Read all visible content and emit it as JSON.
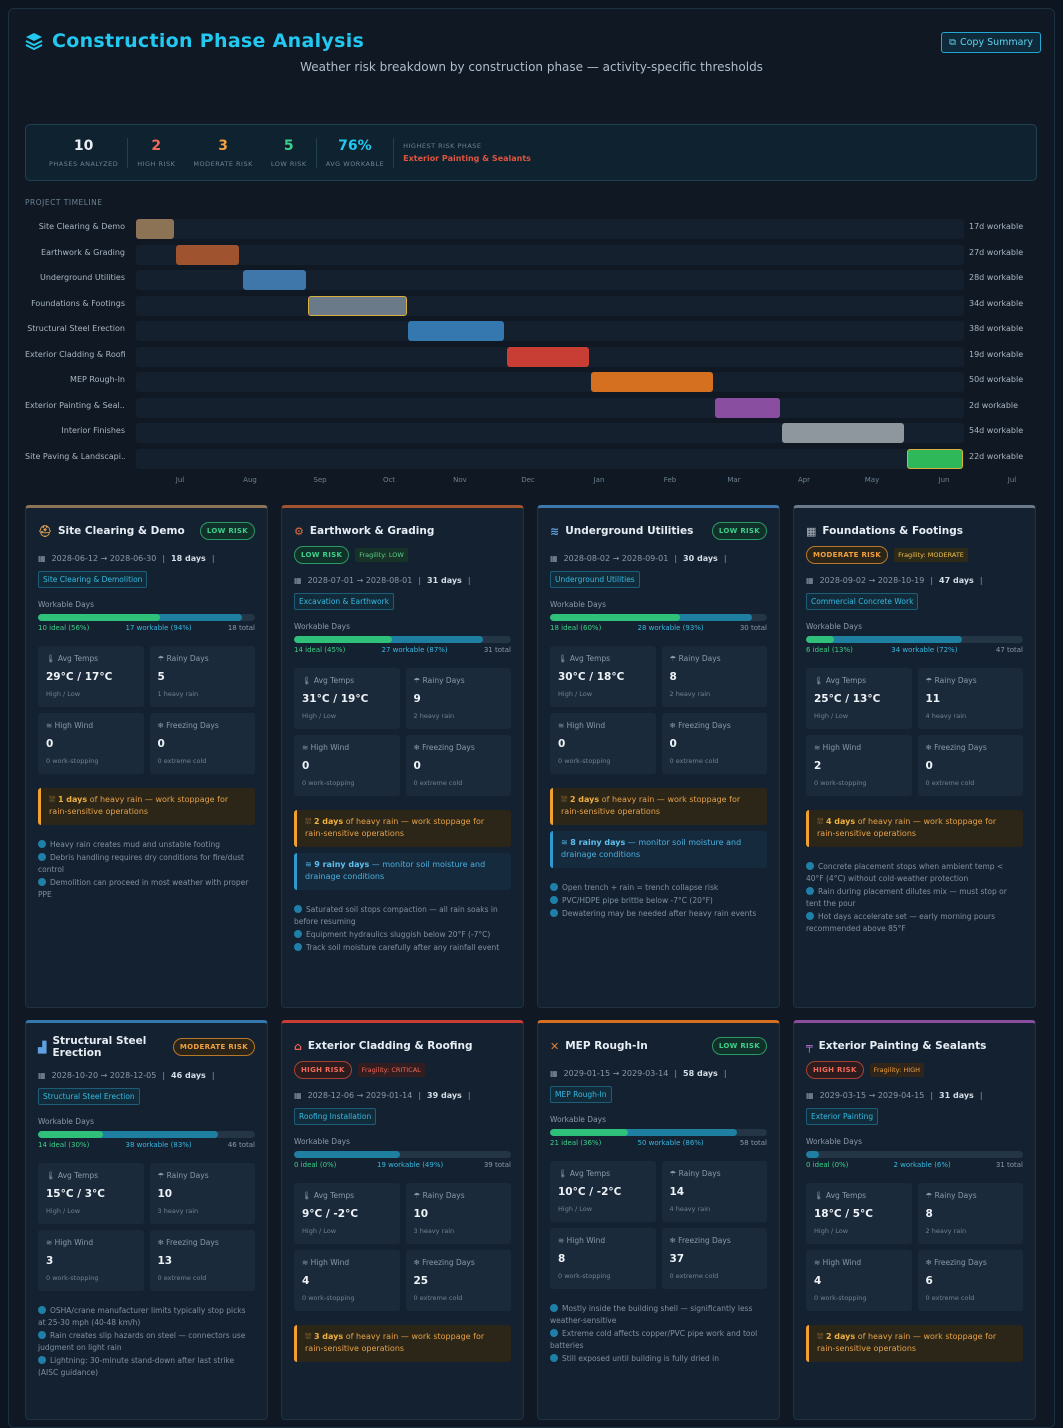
{
  "header": {
    "title": "Construction Phase Analysis",
    "subtitle": "Weather risk breakdown by construction phase — activity-specific thresholds",
    "copy_label": "Copy Summary"
  },
  "summary": {
    "phases": {
      "value": "10",
      "label": "PHASES ANALYZED"
    },
    "high": {
      "value": "2",
      "label": "HIGH RISK"
    },
    "moderate": {
      "value": "3",
      "label": "MODERATE RISK"
    },
    "low": {
      "value": "5",
      "label": "LOW RISK"
    },
    "avg": {
      "value": "76%",
      "label": "AVG WORKABLE"
    },
    "highest_label": "HIGHEST RISK PHASE",
    "highest_value": "Exterior Painting & Sealants"
  },
  "timeline": {
    "title": "PROJECT TIMELINE",
    "months": [
      "Jul",
      "Aug",
      "Sep",
      "Oct",
      "Nov",
      "Dec",
      "Jan",
      "Feb",
      "Mar",
      "Apr",
      "May",
      "Jun",
      "Jul"
    ],
    "rows": [
      {
        "name": "Site Clearing & Demo",
        "workable": "17d workable",
        "start": 0.0,
        "end": 0.046,
        "color": "#8d7355"
      },
      {
        "name": "Earthwork & Grading",
        "workable": "27d workable",
        "start": 0.048,
        "end": 0.125,
        "color": "#a0532f"
      },
      {
        "name": "Underground Utilities",
        "workable": "28d workable",
        "start": 0.129,
        "end": 0.205,
        "color": "#3f77aa"
      },
      {
        "name": "Foundations & Footings",
        "workable": "34d workable",
        "start": 0.208,
        "end": 0.327,
        "color": "#6b7a88"
      },
      {
        "name": "Structural Steel Erection",
        "workable": "38d workable",
        "start": 0.329,
        "end": 0.445,
        "color": "#3578b0"
      },
      {
        "name": "Exterior Cladding & Roofi...",
        "workable": "19d workable",
        "start": 0.448,
        "end": 0.547,
        "color": "#c83e35"
      },
      {
        "name": "MEP Rough-In",
        "workable": "50d workable",
        "start": 0.549,
        "end": 0.697,
        "color": "#d57020"
      },
      {
        "name": "Exterior Painting & Seal...",
        "workable": "2d workable",
        "start": 0.699,
        "end": 0.778,
        "color": "#8a4ea0"
      },
      {
        "name": "Interior Finishes",
        "workable": "54d workable",
        "start": 0.78,
        "end": 0.928,
        "color": "#8e979d"
      },
      {
        "name": "Site Paving & Landscapi...",
        "workable": "22d workable",
        "start": 0.931,
        "end": 0.999,
        "color": "#2fb85a"
      }
    ]
  },
  "cards": [
    {
      "title": "Site Clearing & Demo",
      "risk": "LOW RISK",
      "dates": "2028-06-12 → 2028-06-30",
      "days": "18 days",
      "tag": "Site Clearing & Demolition",
      "wd_label": "Workable Days",
      "ideal": "10 ideal (56%)",
      "workable": "17 workable (94%)",
      "total": "18 total",
      "ideal_pct": 0.56,
      "work_pct": 0.94,
      "temp_h": "Avg Temps",
      "temp": "29°C / 17°C",
      "temp_s": "High / Low",
      "rain_h": "Rainy Days",
      "rain": "5",
      "rain_s": "1 heavy rain",
      "wind_h": "High Wind",
      "wind": "0",
      "wind_s": "0 work-stopping",
      "frz_h": "Freezing Days",
      "frz": "0",
      "frz_s": "0 extreme cold",
      "alert_b": "1 days",
      "alert_t": " of heavy rain — work stoppage for rain-sensitive operations",
      "notes": [
        "Heavy rain creates mud and unstable footing",
        "Debris handling requires dry conditions for fire/dust control",
        "Demolition can proceed in most weather with proper PPE"
      ]
    },
    {
      "title": "Earthwork & Grading",
      "risk": "LOW RISK",
      "frag": "Fragility: LOW",
      "dates": "2028-07-01 → 2028-08-01",
      "days": "31 days",
      "tag": "Excavation & Earthwork",
      "wd_label": "Workable Days",
      "ideal": "14 ideal (45%)",
      "workable": "27 workable (87%)",
      "total": "31 total",
      "ideal_pct": 0.45,
      "work_pct": 0.87,
      "temp_h": "Avg Temps",
      "temp": "31°C / 19°C",
      "temp_s": "High / Low",
      "rain_h": "Rainy Days",
      "rain": "9",
      "rain_s": "2 heavy rain",
      "wind_h": "High Wind",
      "wind": "0",
      "wind_s": "0 work-stopping",
      "frz_h": "Freezing Days",
      "frz": "0",
      "frz_s": "0 extreme cold",
      "alert_b": "2 days",
      "alert_t": " of heavy rain — work stoppage for rain-sensitive operations",
      "blue_b": "9 rainy days",
      "blue_t": " — monitor soil moisture and drainage conditions",
      "notes": [
        "Saturated soil stops compaction — all rain soaks in before resuming",
        "Equipment hydraulics sluggish below 20°F (-7°C)",
        "Track soil moisture carefully after any rainfall event"
      ]
    },
    {
      "title": "Underground Utilities",
      "risk": "LOW RISK",
      "dates": "2028-08-02 → 2028-09-01",
      "days": "30 days",
      "tag": "Underground Utilities",
      "wd_label": "Workable Days",
      "ideal": "18 ideal (60%)",
      "workable": "28 workable (93%)",
      "total": "30 total",
      "ideal_pct": 0.6,
      "work_pct": 0.93,
      "temp_h": "Avg Temps",
      "temp": "30°C / 18°C",
      "temp_s": "High / Low",
      "rain_h": "Rainy Days",
      "rain": "8",
      "rain_s": "2 heavy rain",
      "wind_h": "High Wind",
      "wind": "0",
      "wind_s": "0 work-stopping",
      "frz_h": "Freezing Days",
      "frz": "0",
      "frz_s": "0 extreme cold",
      "alert_b": "2 days",
      "alert_t": " of heavy rain — work stoppage for rain-sensitive operations",
      "blue_b": "8 rainy days",
      "blue_t": " — monitor soil moisture and drainage conditions",
      "notes": [
        "Open trench + rain = trench collapse risk",
        "PVC/HDPE pipe brittle below -7°C (20°F)",
        "Dewatering may be needed after heavy rain events"
      ]
    },
    {
      "title": "Foundations & Footings",
      "risk": "MODERATE RISK",
      "frag": "Fragility: MODERATE",
      "dates": "2028-09-02 → 2028-10-19",
      "days": "47 days",
      "tag": "Commercial Concrete Work",
      "wd_label": "Workable Days",
      "ideal": "6 ideal (13%)",
      "workable": "34 workable (72%)",
      "total": "47 total",
      "ideal_pct": 0.13,
      "work_pct": 0.72,
      "temp_h": "Avg Temps",
      "temp": "25°C / 13°C",
      "temp_s": "High / Low",
      "rain_h": "Rainy Days",
      "rain": "11",
      "rain_s": "4 heavy rain",
      "wind_h": "High Wind",
      "wind": "2",
      "wind_s": "0 work-stopping",
      "frz_h": "Freezing Days",
      "frz": "0",
      "frz_s": "0 extreme cold",
      "alert_b": "4 days",
      "alert_t": " of heavy rain — work stoppage for rain-sensitive operations",
      "notes": [
        "Concrete placement stops when ambient temp < 40°F (4°C) without cold-weather protection",
        "Rain during placement dilutes mix — must stop or tent the pour",
        "Hot days accelerate set — early morning pours recommended above 85°F"
      ]
    },
    {
      "title": "Structural Steel Erection",
      "risk": "MODERATE RISK",
      "dates": "2028-10-20 → 2028-12-05",
      "days": "46 days",
      "tag": "Structural Steel Erection",
      "wd_label": "Workable Days",
      "ideal": "14 ideal (30%)",
      "workable": "38 workable (83%)",
      "total": "46 total",
      "ideal_pct": 0.3,
      "work_pct": 0.83,
      "temp_h": "Avg Temps",
      "temp": "15°C / 3°C",
      "temp_s": "High / Low",
      "rain_h": "Rainy Days",
      "rain": "10",
      "rain_s": "3 heavy rain",
      "wind_h": "High Wind",
      "wind": "3",
      "wind_s": "0 work-stopping",
      "frz_h": "Freezing Days",
      "frz": "13",
      "frz_s": "0 extreme cold",
      "notes": [
        "OSHA/crane manufacturer limits typically stop picks at 25-30 mph (40-48 km/h)",
        "Rain creates slip hazards on steel — connectors use judgment on light rain",
        "Lightning: 30-minute stand-down after last strike (AISC guidance)"
      ]
    },
    {
      "title": "Exterior Cladding & Roofing",
      "risk": "HIGH RISK",
      "frag": "Fragility: CRITICAL",
      "dates": "2028-12-06 → 2029-01-14",
      "days": "39 days",
      "tag": "Roofing Installation",
      "wd_label": "Workable Days",
      "ideal": "0 ideal (0%)",
      "workable": "19 workable (49%)",
      "total": "39 total",
      "ideal_pct": 0.0,
      "work_pct": 0.49,
      "temp_h": "Avg Temps",
      "temp": "9°C / -2°C",
      "temp_s": "High / Low",
      "rain_h": "Rainy Days",
      "rain": "10",
      "rain_s": "3 heavy rain",
      "wind_h": "High Wind",
      "wind": "4",
      "wind_s": "0 work-stopping",
      "frz_h": "Freezing Days",
      "frz": "25",
      "frz_s": "0 extreme cold",
      "alert_b": "3 days",
      "alert_t": " of heavy rain — work stoppage for rain-sensitive operations",
      "notes": []
    },
    {
      "title": "MEP Rough-In",
      "risk": "LOW RISK",
      "dates": "2029-01-15 → 2029-03-14",
      "days": "58 days",
      "tag": "MEP Rough-In",
      "wd_label": "Workable Days",
      "ideal": "21 ideal (36%)",
      "workable": "50 workable (86%)",
      "total": "58 total",
      "ideal_pct": 0.36,
      "work_pct": 0.86,
      "temp_h": "Avg Temps",
      "temp": "10°C / -2°C",
      "temp_s": "High / Low",
      "rain_h": "Rainy Days",
      "rain": "14",
      "rain_s": "4 heavy rain",
      "wind_h": "High Wind",
      "wind": "8",
      "wind_s": "0 work-stopping",
      "frz_h": "Freezing Days",
      "frz": "37",
      "frz_s": "0 extreme cold",
      "notes": [
        "Mostly inside the building shell — significantly less weather-sensitive",
        "Extreme cold affects copper/PVC pipe work and tool batteries",
        "Still exposed until building is fully dried in"
      ]
    },
    {
      "title": "Exterior Painting & Sealants",
      "risk": "HIGH RISK",
      "frag": "Fragility: HIGH",
      "dates": "2029-03-15 → 2029-04-15",
      "days": "31 days",
      "tag": "Exterior Painting",
      "wd_label": "Workable Days",
      "ideal": "0 ideal (0%)",
      "workable": "2 workable (6%)",
      "total": "31 total",
      "ideal_pct": 0.0,
      "work_pct": 0.06,
      "temp_h": "Avg Temps",
      "temp": "18°C / 5°C",
      "temp_s": "High / Low",
      "rain_h": "Rainy Days",
      "rain": "8",
      "rain_s": "2 heavy rain",
      "wind_h": "High Wind",
      "wind": "4",
      "wind_s": "0 work-stopping",
      "frz_h": "Freezing Days",
      "frz": "6",
      "frz_s": "0 extreme cold",
      "alert_b": "2 days",
      "alert_t": " of heavy rain — work stoppage for rain-sensitive operations",
      "notes": []
    }
  ],
  "colors": {
    "accent": "#22c8f0",
    "low": "#3ed08a",
    "moderate": "#f0a040",
    "high": "#f06a5a"
  }
}
